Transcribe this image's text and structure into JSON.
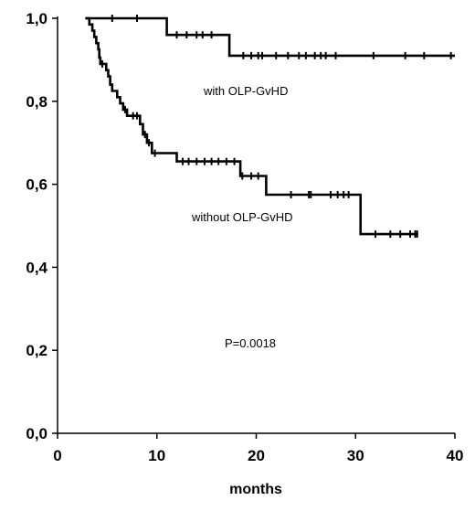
{
  "chart_data": {
    "type": "line",
    "title": "",
    "xlabel": "months",
    "ylabel": "",
    "xlim": [
      0,
      40
    ],
    "ylim": [
      0,
      1
    ],
    "xticks": [
      0,
      10,
      20,
      30,
      40
    ],
    "xtick_labels": [
      "0",
      "10",
      "20",
      "30",
      "40"
    ],
    "yticks": [
      0,
      0.2,
      0.4,
      0.6,
      0.8,
      1.0
    ],
    "ytick_labels": [
      "0,0",
      "0,2",
      "0,4",
      "0,6",
      "0,8",
      "1,0"
    ],
    "grid": false,
    "series": [
      {
        "label": "with OLP-GvHD",
        "steps": [
          [
            2.8,
            1.0
          ],
          [
            11.0,
            0.96
          ],
          [
            17.3,
            0.91
          ],
          [
            40,
            0.91
          ]
        ],
        "censored": [
          [
            5.5,
            1.0
          ],
          [
            8.0,
            1.0
          ],
          [
            12.0,
            0.96
          ],
          [
            13.0,
            0.96
          ],
          [
            14.0,
            0.96
          ],
          [
            14.6,
            0.96
          ],
          [
            15.5,
            0.96
          ],
          [
            18.7,
            0.91
          ],
          [
            19.5,
            0.91
          ],
          [
            20.2,
            0.91
          ],
          [
            20.6,
            0.91
          ],
          [
            22.0,
            0.91
          ],
          [
            23.2,
            0.91
          ],
          [
            24.3,
            0.91
          ],
          [
            25.0,
            0.91
          ],
          [
            25.9,
            0.91
          ],
          [
            26.5,
            0.91
          ],
          [
            27.0,
            0.91
          ],
          [
            28.0,
            0.91
          ],
          [
            31.8,
            0.91
          ],
          [
            35.0,
            0.91
          ],
          [
            36.9,
            0.91
          ],
          [
            39.6,
            0.91
          ]
        ]
      },
      {
        "label": "without OLP-GvHD",
        "steps": [
          [
            2.8,
            1.0
          ],
          [
            3.2,
            0.985
          ],
          [
            3.5,
            0.97
          ],
          [
            3.7,
            0.955
          ],
          [
            3.9,
            0.94
          ],
          [
            4.1,
            0.925
          ],
          [
            4.2,
            0.905
          ],
          [
            4.3,
            0.89
          ],
          [
            4.9,
            0.875
          ],
          [
            5.1,
            0.86
          ],
          [
            5.3,
            0.84
          ],
          [
            5.5,
            0.825
          ],
          [
            6.0,
            0.81
          ],
          [
            6.3,
            0.795
          ],
          [
            6.6,
            0.78
          ],
          [
            7.0,
            0.765
          ],
          [
            8.3,
            0.745
          ],
          [
            8.6,
            0.72
          ],
          [
            9.0,
            0.7
          ],
          [
            9.5,
            0.675
          ],
          [
            12.0,
            0.655
          ],
          [
            18.4,
            0.62
          ],
          [
            21.0,
            0.575
          ],
          [
            30.5,
            0.48
          ],
          [
            36.3,
            0.48
          ]
        ],
        "censored": [
          [
            4.5,
            0.89
          ],
          [
            6.8,
            0.78
          ],
          [
            7.6,
            0.765
          ],
          [
            8.0,
            0.765
          ],
          [
            8.8,
            0.72
          ],
          [
            9.2,
            0.7
          ],
          [
            9.8,
            0.675
          ],
          [
            12.6,
            0.655
          ],
          [
            13.2,
            0.655
          ],
          [
            14.0,
            0.655
          ],
          [
            14.8,
            0.655
          ],
          [
            15.5,
            0.655
          ],
          [
            16.2,
            0.655
          ],
          [
            17.0,
            0.655
          ],
          [
            17.8,
            0.655
          ],
          [
            18.6,
            0.62
          ],
          [
            19.5,
            0.62
          ],
          [
            20.2,
            0.62
          ],
          [
            23.5,
            0.575
          ],
          [
            25.3,
            0.575
          ],
          [
            25.5,
            0.575
          ],
          [
            27.5,
            0.575
          ],
          [
            28.2,
            0.575
          ],
          [
            28.8,
            0.575
          ],
          [
            29.3,
            0.575
          ],
          [
            32.0,
            0.48
          ],
          [
            33.5,
            0.48
          ],
          [
            34.5,
            0.48
          ],
          [
            35.5,
            0.48
          ],
          [
            36.0,
            0.48
          ],
          [
            36.2,
            0.48
          ]
        ]
      }
    ],
    "annotations": {
      "with_label": "with OLP-GvHD",
      "without_label": "without  OLP-GvHD",
      "p_value": "P=0.0018"
    }
  }
}
